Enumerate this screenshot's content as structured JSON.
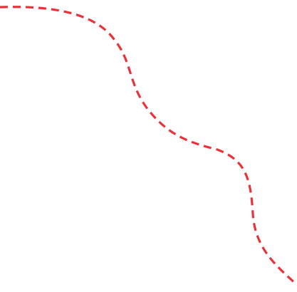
{
  "curve": {
    "stroke_color": "#e8333a",
    "style": "dashed"
  },
  "background_color": "#ffffff"
}
